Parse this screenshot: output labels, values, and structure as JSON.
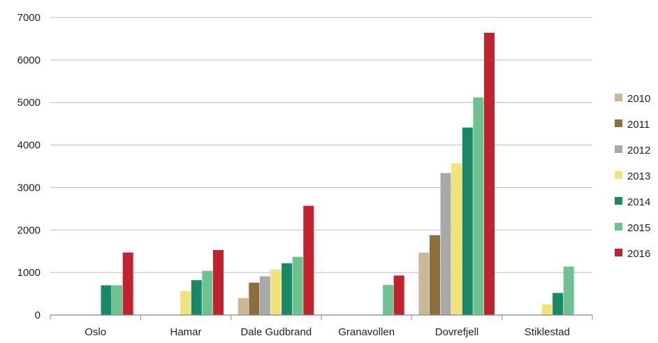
{
  "chart_data": {
    "type": "bar",
    "title": "",
    "xlabel": "",
    "ylabel": "",
    "ylim": [
      0,
      7000
    ],
    "yticks": [
      "0",
      "1000",
      "2000",
      "3000",
      "4000",
      "5000",
      "6000",
      "7000"
    ],
    "grid": true,
    "legend_position": "right",
    "categories": [
      "Oslo",
      "Hamar",
      "Dale Gudbrand",
      "Granavollen",
      "Dovrefjell",
      "Stiklestad"
    ],
    "series": [
      {
        "name": "2010",
        "color": "#c8b894",
        "values": [
          null,
          null,
          400,
          null,
          1470,
          null
        ]
      },
      {
        "name": "2011",
        "color": "#8b6e3e",
        "values": [
          null,
          null,
          760,
          null,
          1880,
          null
        ]
      },
      {
        "name": "2012",
        "color": "#a9a9a9",
        "values": [
          null,
          null,
          910,
          null,
          3340,
          null
        ]
      },
      {
        "name": "2013",
        "color": "#f1e27a",
        "values": [
          null,
          560,
          1070,
          null,
          3570,
          250
        ]
      },
      {
        "name": "2014",
        "color": "#188868",
        "values": [
          700,
          820,
          1220,
          null,
          4410,
          520
        ]
      },
      {
        "name": "2015",
        "color": "#6dc28f",
        "values": [
          700,
          1040,
          1370,
          710,
          5120,
          1140
        ]
      },
      {
        "name": "2016",
        "color": "#c0222e",
        "values": [
          1470,
          1530,
          2570,
          930,
          6640,
          null
        ]
      }
    ]
  }
}
